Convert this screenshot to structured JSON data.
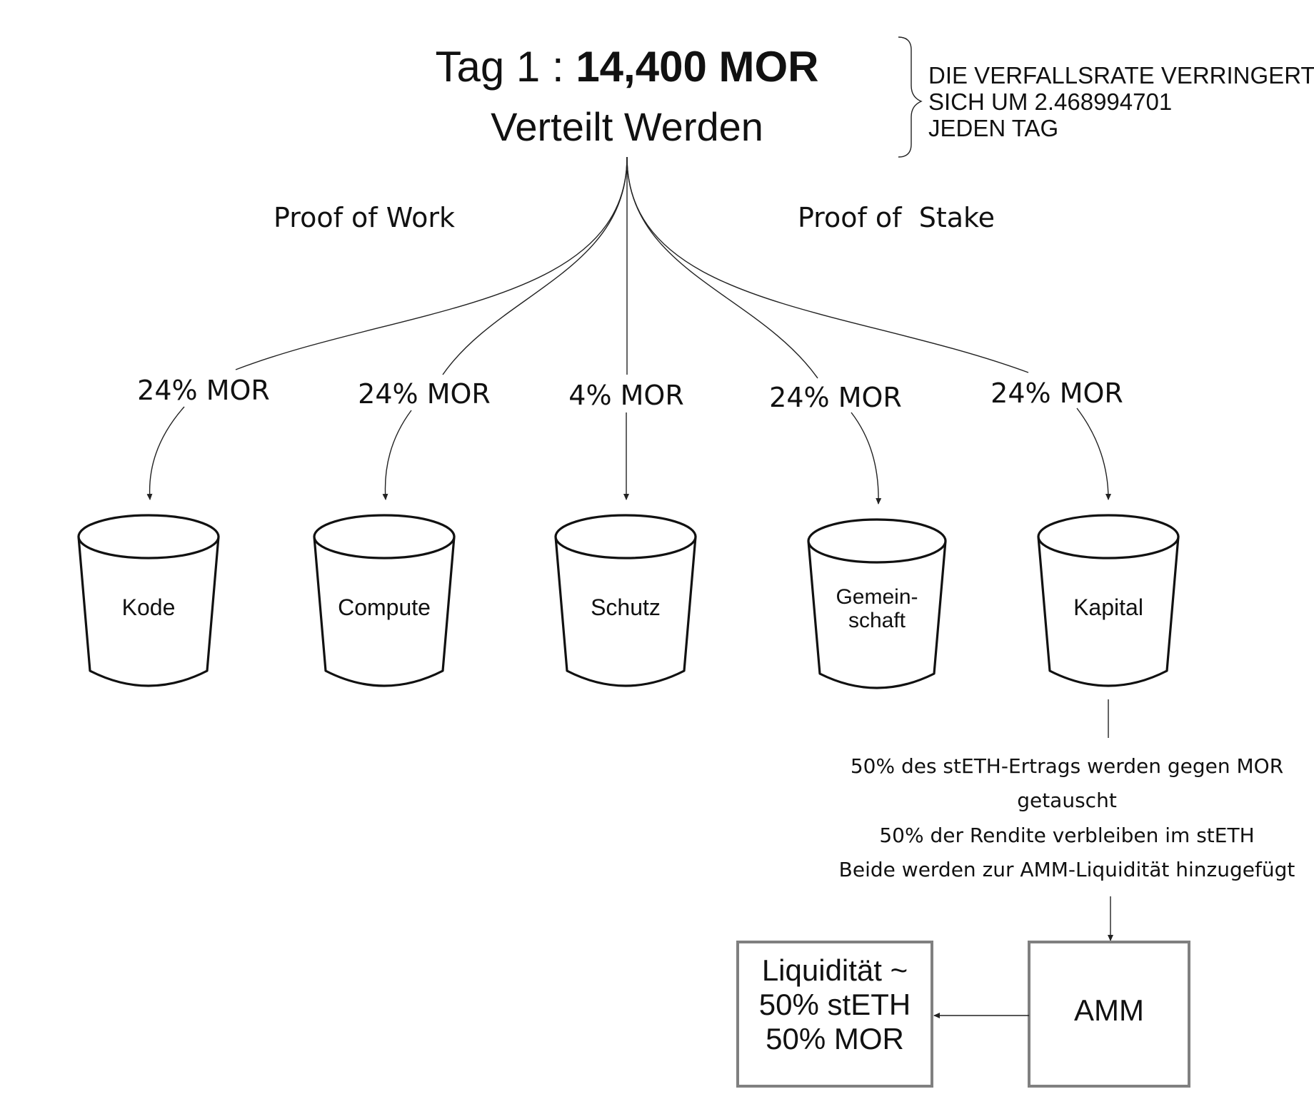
{
  "header": {
    "title_prefix": "Tag 1 : ",
    "title_amount": "14,400 MOR",
    "title_sub": "Verteilt Werden"
  },
  "decay_note": {
    "lines": [
      "DIE VERFALLSRATE VERRINGERT",
      "SICH UM 2.468994701",
      "JEDEN TAG"
    ]
  },
  "categories": {
    "left": "Proof of Work",
    "right": "Proof of  Stake"
  },
  "buckets": [
    {
      "percent": "24% MOR",
      "label_lines": [
        "Kode"
      ]
    },
    {
      "percent": "24% MOR",
      "label_lines": [
        "Compute"
      ]
    },
    {
      "percent": "4% MOR",
      "label_lines": [
        "Schutz"
      ]
    },
    {
      "percent": "24% MOR",
      "label_lines": [
        "Gemein-",
        "schaft"
      ]
    },
    {
      "percent": "24% MOR",
      "label_lines": [
        "Kapital"
      ]
    }
  ],
  "capital_notes": [
    "50% des stETH-Ertrags werden gegen MOR",
    "getauscht",
    "50% der Rendite verbleiben im stETH",
    "Beide werden zur AMM-Liquidität hinzugefügt"
  ],
  "amm_box": {
    "label": "AMM"
  },
  "liquidity_box": {
    "lines": [
      "Liquidität ~",
      "50% stETH",
      "50% MOR"
    ]
  }
}
